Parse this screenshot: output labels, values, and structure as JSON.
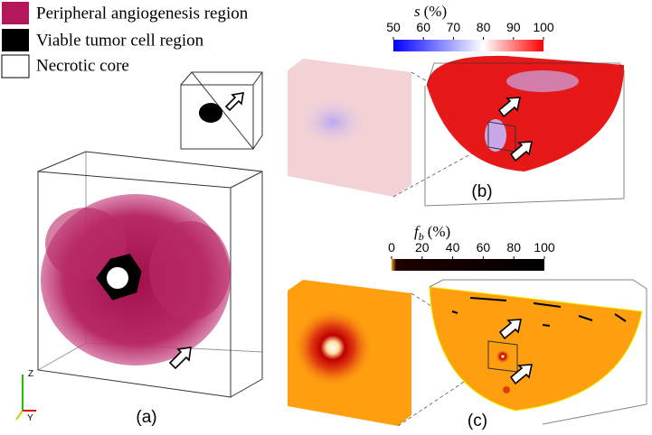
{
  "legend": {
    "items": [
      {
        "label": "Peripheral angiogenesis region",
        "color": "#b5185a"
      },
      {
        "label": "Viable tumor cell region",
        "color": "#000000"
      },
      {
        "label": "Necrotic core",
        "color": "#ffffff"
      }
    ]
  },
  "colorbars": [
    {
      "symbol": "s",
      "subscript": "",
      "unit": "(%)",
      "range": [
        50,
        100
      ],
      "ticks": [
        50,
        60,
        70,
        80,
        90,
        100
      ],
      "colors": [
        "#0000ff",
        "#ffffff",
        "#ff0000"
      ]
    },
    {
      "symbol": "f",
      "subscript": "b",
      "unit": "(%)",
      "range": [
        0,
        100
      ],
      "ticks": [
        0,
        20,
        40,
        60,
        80,
        100
      ],
      "colors": [
        "#ffa500",
        "#200000",
        "#000000"
      ]
    }
  ],
  "panels": [
    "(a)",
    "(b)",
    "(c)"
  ],
  "axes": [
    "Z",
    "Y"
  ]
}
